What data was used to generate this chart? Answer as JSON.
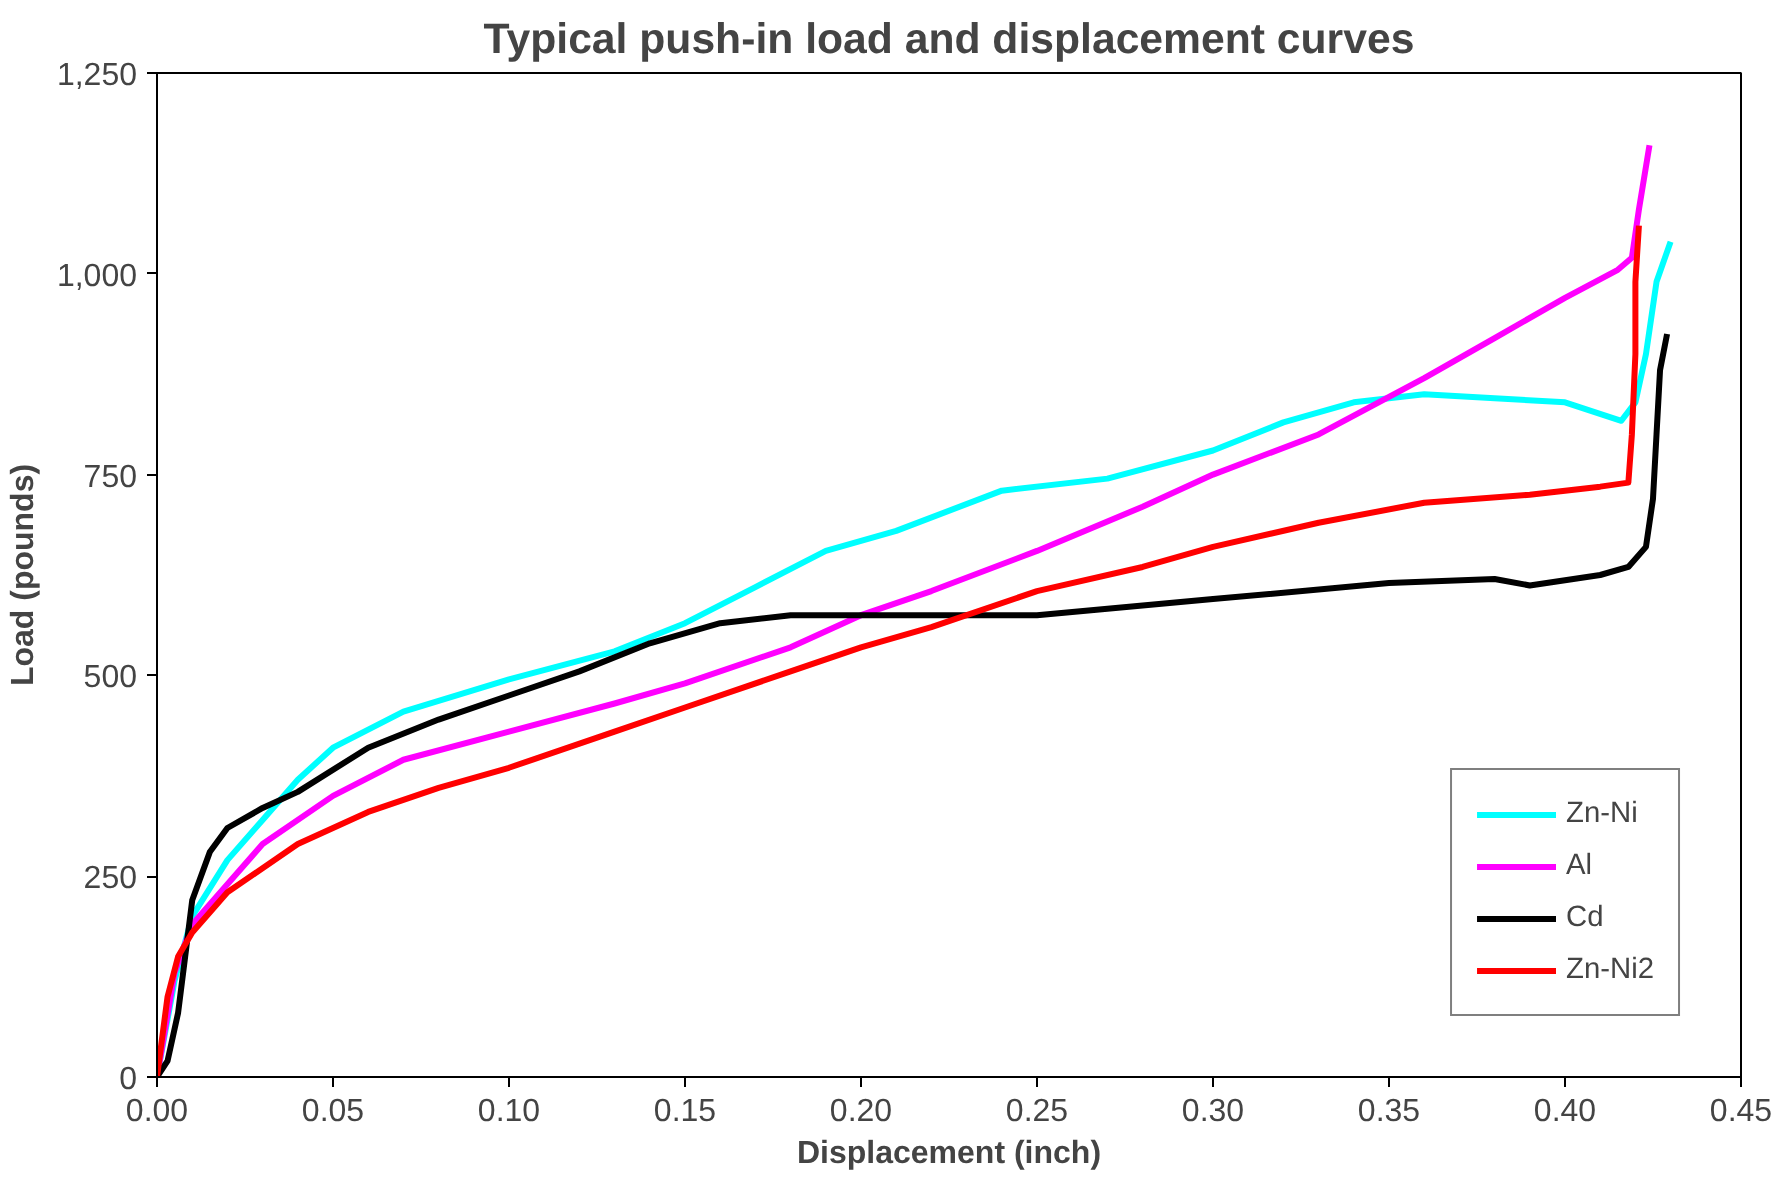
{
  "chart_data": {
    "type": "line",
    "title": "Typical push-in load and displacement curves",
    "xlabel": "Displacement (inch)",
    "ylabel": "Load (pounds)",
    "xlim": [
      0,
      0.45
    ],
    "ylim": [
      0,
      1250
    ],
    "xticks": [
      {
        "value": 0,
        "label": "0.00"
      },
      0.05,
      {
        "value": 0.1,
        "label": "0.10"
      },
      0.15,
      {
        "value": 0.2,
        "label": "0.20"
      },
      0.25,
      {
        "value": 0.3,
        "label": "0.30"
      },
      0.35,
      {
        "value": 0.4,
        "label": "0.40"
      },
      0.45
    ],
    "yticks": [
      0,
      250,
      500,
      750,
      {
        "value": 1000,
        "label": "1,000"
      },
      {
        "value": 1250,
        "label": "1,250"
      }
    ],
    "grid": false,
    "legend": "bottom right",
    "marker": "none",
    "line_style": "solid",
    "series": [
      {
        "name": "Zn-Ni",
        "color": "#00ffff",
        "x": [
          0,
          0.005,
          0.01,
          0.02,
          0.03,
          0.04,
          0.05,
          0.07,
          0.1,
          0.13,
          0.15,
          0.17,
          0.19,
          0.21,
          0.24,
          0.27,
          0.3,
          0.32,
          0.34,
          0.36,
          0.38,
          0.4,
          0.416,
          0.42,
          0.423,
          0.426,
          0.43
        ],
        "values": [
          0,
          120,
          200,
          270,
          320,
          370,
          410,
          455,
          495,
          530,
          565,
          610,
          655,
          680,
          730,
          745,
          780,
          815,
          840,
          850,
          845,
          840,
          817,
          840,
          900,
          990,
          1040
        ]
      },
      {
        "name": "Al",
        "color": "#ff00ff",
        "x": [
          0,
          0.005,
          0.01,
          0.02,
          0.03,
          0.05,
          0.07,
          0.1,
          0.13,
          0.15,
          0.18,
          0.2,
          0.22,
          0.25,
          0.28,
          0.3,
          0.33,
          0.36,
          0.38,
          0.4,
          0.415,
          0.419,
          0.421,
          0.424
        ],
        "values": [
          0,
          130,
          190,
          240,
          290,
          350,
          395,
          430,
          465,
          490,
          535,
          575,
          605,
          655,
          710,
          750,
          800,
          870,
          920,
          970,
          1005,
          1020,
          1080,
          1160
        ]
      },
      {
        "name": "Cd",
        "color": "#000000",
        "x": [
          0,
          0.003,
          0.006,
          0.008,
          0.01,
          0.015,
          0.02,
          0.03,
          0.04,
          0.06,
          0.08,
          0.1,
          0.12,
          0.14,
          0.16,
          0.18,
          0.2,
          0.25,
          0.3,
          0.35,
          0.38,
          0.39,
          0.41,
          0.418,
          0.423,
          0.425,
          0.426,
          0.427,
          0.429
        ],
        "values": [
          0,
          20,
          80,
          150,
          220,
          280,
          310,
          335,
          355,
          410,
          445,
          475,
          505,
          540,
          565,
          575,
          575,
          575,
          595,
          615,
          620,
          612,
          625,
          635,
          660,
          720,
          800,
          880,
          925
        ]
      },
      {
        "name": "Zn-Ni2",
        "color": "#ff0000",
        "x": [
          0,
          0.003,
          0.006,
          0.01,
          0.02,
          0.04,
          0.06,
          0.08,
          0.1,
          0.13,
          0.15,
          0.18,
          0.2,
          0.22,
          0.25,
          0.28,
          0.3,
          0.33,
          0.36,
          0.39,
          0.41,
          0.418,
          0.419,
          0.42,
          0.42,
          0.421
        ],
        "values": [
          0,
          100,
          150,
          180,
          230,
          290,
          330,
          360,
          385,
          430,
          460,
          505,
          535,
          560,
          605,
          635,
          660,
          690,
          715,
          725,
          735,
          740,
          800,
          900,
          990,
          1060
        ]
      }
    ]
  }
}
